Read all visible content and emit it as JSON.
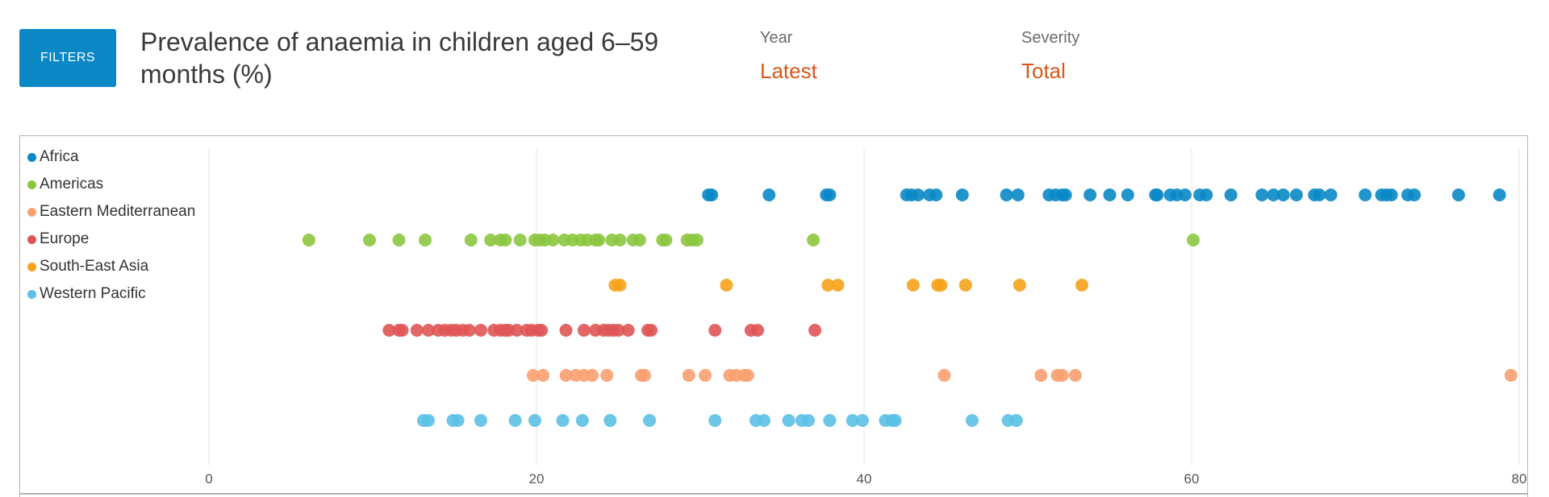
{
  "filters": {
    "label": "FILTERS"
  },
  "title": "Prevalence of anaemia in children aged 6–59 months (%)",
  "selectors": {
    "year": {
      "label": "Year",
      "value": "Latest"
    },
    "severity": {
      "label": "Severity",
      "value": "Total"
    }
  },
  "chart_data": {
    "type": "scatter",
    "title": "Prevalence of anaemia in children aged 6–59 months (%)",
    "xlim": [
      0,
      80
    ],
    "xticks": [
      0,
      20,
      40,
      60,
      80
    ],
    "grid": true,
    "legend": "top-left",
    "series": [
      {
        "name": "Africa",
        "color": "#0a88c6",
        "values": [
          30.5,
          30.7,
          34.2,
          37.7,
          37.9,
          42.6,
          42.9,
          43.3,
          44.0,
          44.4,
          46.0,
          48.7,
          49.4,
          51.3,
          51.7,
          52.1,
          52.3,
          53.8,
          55.0,
          56.1,
          57.8,
          57.9,
          58.7,
          59.1,
          59.6,
          60.5,
          60.9,
          62.4,
          64.3,
          65.0,
          65.6,
          66.4,
          67.5,
          67.8,
          68.5,
          70.6,
          71.6,
          71.9,
          72.2,
          73.2,
          73.6,
          76.3,
          78.8
        ]
      },
      {
        "name": "Americas",
        "color": "#8cc63f",
        "values": [
          6.1,
          9.8,
          11.6,
          13.2,
          16.0,
          17.2,
          17.8,
          18.1,
          19.0,
          19.9,
          20.2,
          20.5,
          21.0,
          21.7,
          22.2,
          22.7,
          23.1,
          23.6,
          23.8,
          24.6,
          25.1,
          25.9,
          26.3,
          27.7,
          27.9,
          29.2,
          29.5,
          29.8,
          36.9,
          60.1
        ]
      },
      {
        "name": "South-East Asia",
        "color": "#f7a21b",
        "values": [
          24.8,
          25.1,
          31.6,
          37.8,
          38.4,
          43.0,
          44.5,
          44.7,
          46.2,
          49.5,
          53.3
        ]
      },
      {
        "name": "Europe",
        "color": "#e05555",
        "values": [
          11.0,
          11.6,
          11.8,
          12.7,
          13.4,
          14.0,
          14.4,
          14.8,
          15.1,
          15.5,
          15.9,
          16.6,
          17.4,
          17.8,
          18.1,
          18.3,
          18.8,
          19.4,
          19.7,
          20.1,
          20.3,
          21.8,
          22.9,
          23.6,
          24.1,
          24.4,
          24.7,
          25.0,
          25.6,
          26.8,
          27.0,
          30.9,
          33.1,
          33.5,
          37.0
        ]
      },
      {
        "name": "Eastern Mediterranean",
        "color": "#f9a070",
        "values": [
          19.8,
          20.4,
          21.8,
          22.4,
          22.9,
          23.4,
          24.3,
          26.4,
          26.6,
          29.3,
          30.3,
          31.8,
          32.2,
          32.7,
          32.9,
          44.9,
          50.8,
          51.8,
          52.1,
          52.9,
          79.5
        ]
      },
      {
        "name": "Western Pacific",
        "color": "#5bc0e6",
        "values": [
          13.1,
          13.4,
          14.9,
          15.2,
          16.6,
          18.7,
          19.9,
          21.6,
          22.8,
          24.5,
          26.9,
          30.9,
          33.4,
          33.9,
          35.4,
          36.2,
          36.6,
          37.9,
          39.3,
          39.9,
          41.3,
          41.7,
          41.9,
          46.6,
          48.8,
          49.3
        ]
      }
    ]
  },
  "legend": {
    "items": [
      {
        "label": "Africa",
        "color": "#0a88c6"
      },
      {
        "label": "Americas",
        "color": "#8cc63f"
      },
      {
        "label": "Eastern Mediterranean",
        "color": "#f9a070"
      },
      {
        "label": "Europe",
        "color": "#e05555"
      },
      {
        "label": "South-East Asia",
        "color": "#f7a21b"
      },
      {
        "label": "Western Pacific",
        "color": "#5bc0e6"
      }
    ]
  }
}
